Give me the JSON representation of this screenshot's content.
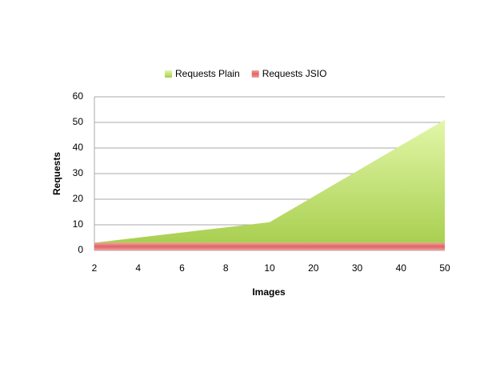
{
  "chart_data": {
    "type": "area",
    "x_label": "Images",
    "y_label": "Requests",
    "categories": [
      "2",
      "4",
      "6",
      "8",
      "10",
      "20",
      "30",
      "40",
      "50"
    ],
    "series": [
      {
        "name": "Requests Plain",
        "color": "#b5d95e",
        "values": [
          3,
          5,
          7,
          9,
          11,
          21,
          31,
          41,
          51
        ]
      },
      {
        "name": "Requests JSIO",
        "color": "#e8787a",
        "values": [
          3,
          3,
          3,
          3,
          3,
          3,
          3,
          3,
          3
        ]
      }
    ],
    "ylim": [
      0,
      60
    ],
    "yticks": [
      0,
      10,
      20,
      30,
      40,
      50,
      60
    ],
    "grid": true,
    "legend": "top"
  }
}
